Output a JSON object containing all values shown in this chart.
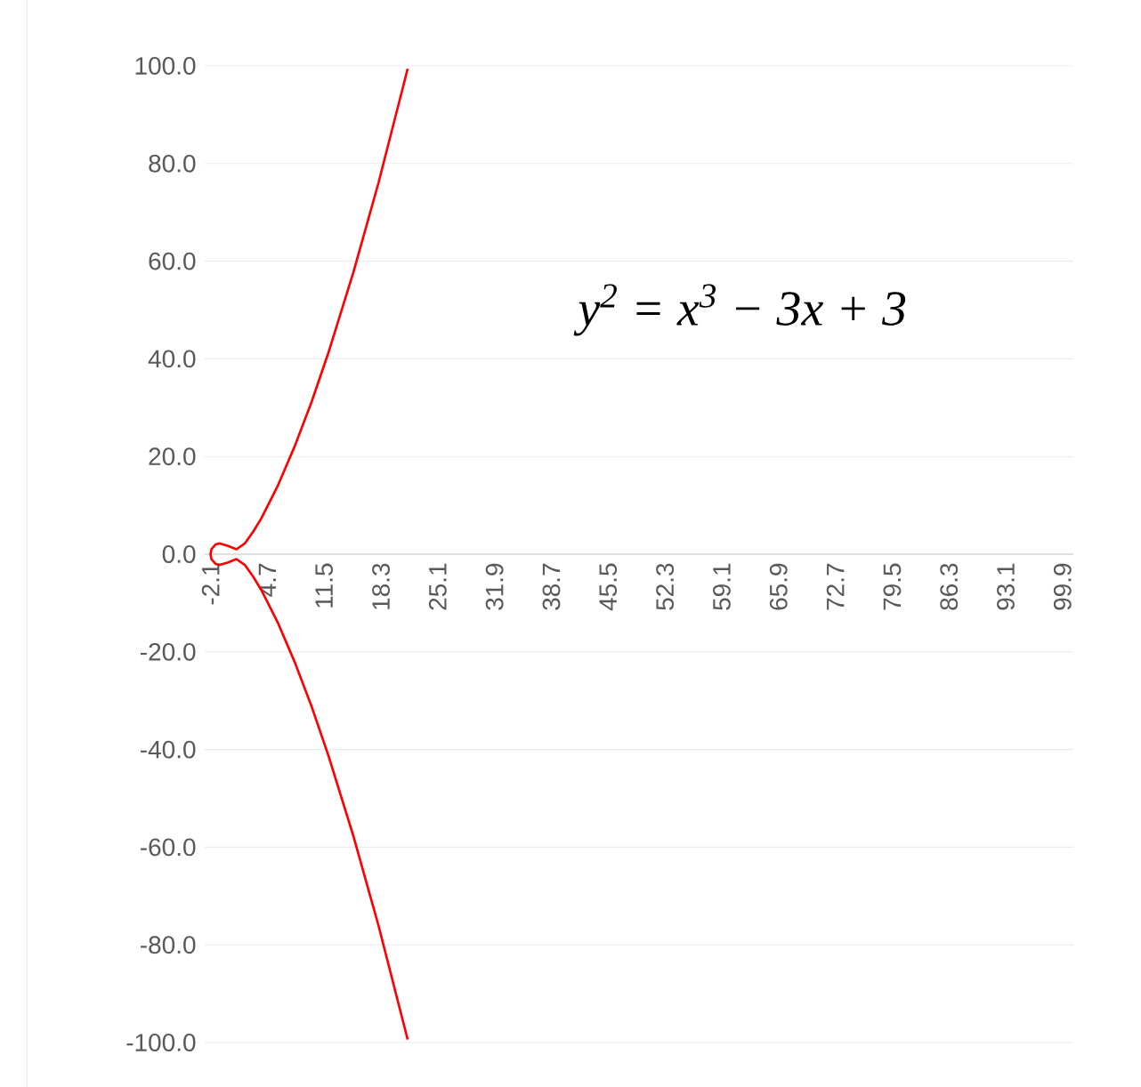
{
  "chart_data": {
    "type": "line",
    "annotations": [
      "y$^{2}$ = x$^{3}$ − 3x + 3"
    ],
    "x": [
      21.5,
      18,
      15,
      12,
      10,
      8,
      6,
      4,
      3,
      2,
      1,
      0,
      -1,
      -1.5,
      -2,
      -2.1,
      -2,
      -1.5,
      -1,
      0,
      1,
      2,
      3,
      4,
      6,
      8,
      10,
      12,
      15,
      18,
      21.5
    ],
    "series": [
      {
        "color": "#ff0000",
        "values": [
          99.4,
          76.0,
          57.7,
          41.2,
          31.2,
          22.2,
          14.2,
          7.4,
          4.6,
          2.2,
          1.0,
          1.7,
          2.2,
          2.0,
          1.0,
          0,
          -1.0,
          -2.0,
          -2.2,
          -1.7,
          -1.0,
          -2.2,
          -4.6,
          -7.4,
          -14.2,
          -22.2,
          -31.2,
          -41.2,
          -57.7,
          -76.0,
          -99.4
        ]
      }
    ],
    "xlim": [
      -2.8,
      101.2
    ],
    "ylim": [
      -100,
      100
    ],
    "xticks": [
      {
        "value": -2.1,
        "label": "-2.1"
      },
      {
        "value": 4.7,
        "label": "4.7"
      },
      {
        "value": 11.5,
        "label": "11.5"
      },
      {
        "value": 18.3,
        "label": "18.3"
      },
      {
        "value": 25.1,
        "label": "25.1"
      },
      {
        "value": 31.9,
        "label": "31.9"
      },
      {
        "value": 38.7,
        "label": "38.7"
      },
      {
        "value": 45.5,
        "label": "45.5"
      },
      {
        "value": 52.3,
        "label": "52.3"
      },
      {
        "value": 59.1,
        "label": "59.1"
      },
      {
        "value": 65.9,
        "label": "65.9"
      },
      {
        "value": 72.7,
        "label": "72.7"
      },
      {
        "value": 79.5,
        "label": "79.5"
      },
      {
        "value": 86.3,
        "label": "86.3"
      },
      {
        "value": 93.1,
        "label": "93.1"
      },
      {
        "value": 99.9,
        "label": "99.9"
      }
    ],
    "yticks": [
      {
        "value": -100,
        "label": "-100.0"
      },
      {
        "value": -80,
        "label": "-80.0"
      },
      {
        "value": -60,
        "label": "-60.0"
      },
      {
        "value": -40,
        "label": "-40.0"
      },
      {
        "value": -20,
        "label": "-20.0"
      },
      {
        "value": 0,
        "label": "0.0"
      },
      {
        "value": 20,
        "label": "20.0"
      },
      {
        "value": 40,
        "label": "40.0"
      },
      {
        "value": 60,
        "label": "60.0"
      },
      {
        "value": 80,
        "label": "80.0"
      },
      {
        "value": 100,
        "label": "100.0"
      }
    ],
    "grid": "y",
    "marker": "none",
    "line_style": "solid"
  }
}
